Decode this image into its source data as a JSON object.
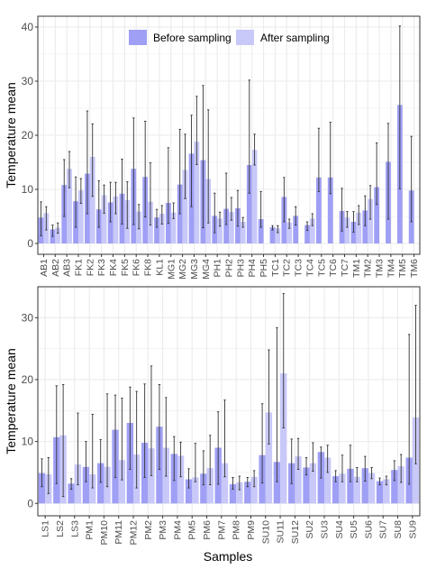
{
  "colors": {
    "before": "#9f9ff5",
    "after": "#c8c8f9",
    "grid": "#ebebeb",
    "errorbar": "#333333",
    "panel_border": "#333333"
  },
  "legend": {
    "before_label": "Before sampling",
    "after_label": "After sampling",
    "placement": "top-center (inside top panel)"
  },
  "xlabel_bottom": "Samples",
  "chart_data": [
    {
      "type": "bar",
      "ylabel": "Temperature mean",
      "xlabel": "",
      "ylim": [
        -2,
        42
      ],
      "yticks": [
        0,
        10,
        20,
        30,
        40
      ],
      "grid": true,
      "categories": [
        "AB1",
        "AB2",
        "AB3",
        "FK1",
        "FK2",
        "FK3",
        "FK4",
        "FK5",
        "FK6",
        "FK8",
        "KL1",
        "MG1",
        "MG2",
        "MG3",
        "MG4",
        "PH1",
        "PH2",
        "PH3",
        "PH4",
        "PH5",
        "TC1",
        "TC2",
        "TC3",
        "TC4",
        "TC5",
        "TC6",
        "TC7",
        "TM1",
        "TM2",
        "TM3",
        "TM4",
        "TM5",
        "TM6"
      ],
      "series": [
        {
          "name": "Before sampling",
          "values": [
            4.8,
            2.6,
            10.8,
            7.8,
            12.9,
            6.3,
            7.6,
            9.2,
            13.8,
            12.3,
            4.8,
            7.5,
            10.9,
            16.6,
            15.4,
            5.1,
            6.4,
            6.5,
            14.5,
            4.5,
            3.0,
            8.6,
            5.1,
            3.4,
            12.2,
            12.2,
            6.0,
            4.0,
            6.1,
            10.4,
            15.1,
            25.6,
            9.8
          ],
          "err_low": [
            1.4,
            1.3,
            5.0,
            3.0,
            5.5,
            3.0,
            4.0,
            3.6,
            3.5,
            4.9,
            3.0,
            3.7,
            5.5,
            6.8,
            2.9,
            2.0,
            3.5,
            3.2,
            9.3,
            3.0,
            2.5,
            4.0,
            3.4,
            2.4,
            9.6,
            9.2,
            2.3,
            2.1,
            3.3,
            7.2,
            4.5,
            10.1,
            4.0
          ],
          "err_high": [
            7.7,
            3.4,
            15.5,
            12.3,
            24.5,
            11.6,
            11.3,
            15.6,
            23.2,
            22.6,
            6.3,
            17.7,
            21.1,
            23.7,
            29.2,
            9.3,
            13.0,
            9.8,
            30.2,
            9.6,
            3.3,
            12.2,
            6.8,
            4.0,
            21.3,
            22.4,
            10.2,
            5.9,
            8.8,
            18.6,
            22.2,
            40.2,
            19.8
          ]
        },
        {
          "name": "After sampling",
          "values": [
            5.6,
            2.9,
            13.8,
            9.8,
            16.0,
            8.9,
            8.7,
            8.0,
            5.9,
            7.7,
            5.5,
            5.7,
            13.6,
            18.8,
            11.9,
            4.6,
            5.8,
            4.0,
            17.3,
            null,
            2.8,
            3.9,
            null,
            4.6,
            null,
            null,
            4.8,
            5.7,
            8.2,
            null,
            null,
            null,
            null
          ],
          "err_low": [
            2.5,
            1.9,
            10.3,
            7.4,
            8.7,
            5.6,
            5.5,
            2.8,
            2.7,
            3.4,
            3.6,
            4.6,
            8.3,
            14.6,
            3.8,
            3.2,
            4.3,
            3.0,
            14.5,
            null,
            2.0,
            2.8,
            null,
            3.3,
            null,
            null,
            3.0,
            3.5,
            4.5,
            null,
            null,
            null,
            null
          ],
          "err_high": [
            6.8,
            3.8,
            17.0,
            12.0,
            22.1,
            10.8,
            11.3,
            11.4,
            7.2,
            14.9,
            7.0,
            7.5,
            20.2,
            27.2,
            24.7,
            5.8,
            8.5,
            4.8,
            20.2,
            null,
            3.3,
            4.5,
            null,
            5.5,
            null,
            null,
            5.9,
            7.0,
            10.7,
            null,
            null,
            null,
            null
          ]
        }
      ]
    },
    {
      "type": "bar",
      "ylabel": "Temperature mean",
      "xlabel": "Samples",
      "ylim": [
        -2,
        35
      ],
      "yticks": [
        0,
        10,
        20,
        30
      ],
      "grid": true,
      "categories": [
        "LS1",
        "LS2",
        "LS3",
        "PM1",
        "PM10",
        "PM11",
        "PM12",
        "PM2",
        "PM3",
        "PM4",
        "PM5",
        "PM6",
        "PM7",
        "PM8",
        "PM9",
        "SU10",
        "SU11",
        "SU12",
        "SU2",
        "SU3",
        "SU4",
        "SU5",
        "SU6",
        "SU7",
        "SU8",
        "SU9"
      ],
      "series": [
        {
          "name": "Before sampling",
          "values": [
            4.9,
            10.7,
            3.2,
            5.9,
            6.5,
            11.9,
            13.0,
            9.8,
            12.4,
            8.0,
            3.9,
            4.8,
            9.0,
            3.1,
            3.5,
            7.8,
            6.7,
            6.5,
            5.8,
            8.3,
            4.4,
            5.6,
            5.7,
            3.6,
            5.4,
            7.4
          ],
          "err_low": [
            2.7,
            3.2,
            2.3,
            3.5,
            3.4,
            4.2,
            5.5,
            4.2,
            5.5,
            3.7,
            2.5,
            3.0,
            3.1,
            2.3,
            2.7,
            3.3,
            3.5,
            3.2,
            4.6,
            4.1,
            3.5,
            3.5,
            3.6,
            3.0,
            3.7,
            3.1
          ],
          "err_high": [
            7.2,
            19.0,
            4.0,
            10.0,
            10.3,
            17.5,
            18.8,
            19.3,
            19.2,
            10.8,
            5.6,
            8.5,
            14.8,
            4.2,
            4.2,
            16.1,
            28.4,
            10.4,
            7.4,
            9.1,
            5.3,
            9.4,
            7.6,
            4.1,
            6.9,
            27.3
          ]
        },
        {
          "name": "After sampling",
          "values": [
            4.7,
            11.0,
            6.3,
            4.7,
            5.9,
            7.0,
            7.9,
            8.9,
            9.0,
            7.7,
            4.2,
            5.7,
            6.5,
            3.4,
            4.3,
            14.7,
            21.0,
            7.6,
            6.5,
            7.4,
            4.8,
            4.3,
            4.9,
            3.9,
            6.0,
            13.9
          ],
          "err_low": [
            1.6,
            1.1,
            3.0,
            2.5,
            2.7,
            3.8,
            2.5,
            4.5,
            4.4,
            4.3,
            3.5,
            3.0,
            4.3,
            2.2,
            2.7,
            9.6,
            12.2,
            5.5,
            5.2,
            5.0,
            3.5,
            3.5,
            4.0,
            3.0,
            3.4,
            6.4
          ],
          "err_high": [
            7.4,
            19.2,
            14.6,
            14.4,
            17.7,
            17.0,
            18.1,
            22.2,
            17.1,
            9.9,
            9.7,
            11.0,
            16.7,
            4.4,
            5.3,
            24.8,
            33.9,
            10.5,
            9.8,
            9.4,
            7.8,
            5.8,
            5.8,
            4.4,
            7.9,
            32.0
          ]
        }
      ]
    }
  ]
}
